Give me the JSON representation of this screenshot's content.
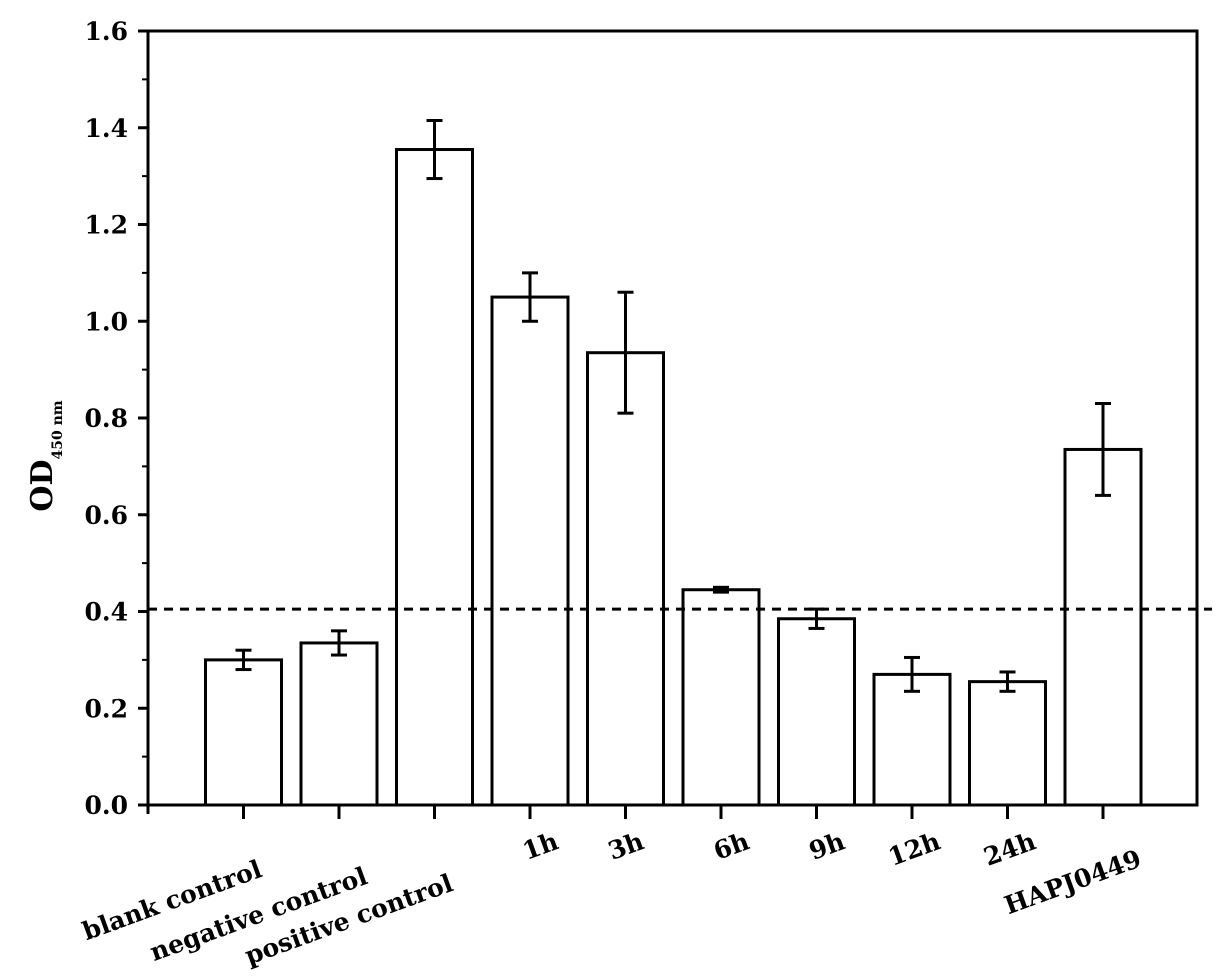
{
  "chart_data": {
    "type": "bar",
    "title": "",
    "xlabel": "",
    "ylabel": "OD",
    "ylabel_subscript": "450 nm",
    "ylim": [
      0,
      1.6
    ],
    "yticks": [
      0.0,
      0.2,
      0.4,
      0.6,
      0.8,
      1.0,
      1.2,
      1.4,
      1.6
    ],
    "ytick_labels": [
      "0.0",
      "0.2",
      "0.4",
      "0.6",
      "0.8",
      "1.0",
      "1.2",
      "1.4",
      "1.6"
    ],
    "categories": [
      "blank control",
      "negative control",
      "positive control",
      "1h",
      "3h",
      "6h",
      "9h",
      "12h",
      "24h",
      "HAPJ0449"
    ],
    "values": [
      0.3,
      0.335,
      1.355,
      1.05,
      0.935,
      0.445,
      0.385,
      0.27,
      0.255,
      0.735
    ],
    "errors": [
      0.02,
      0.025,
      0.06,
      0.05,
      0.125,
      0.005,
      0.02,
      0.035,
      0.02,
      0.095
    ],
    "threshold": 0.405,
    "grid": false,
    "colors": {
      "bar_fill": "#ffffff",
      "stroke": "#000000"
    }
  }
}
